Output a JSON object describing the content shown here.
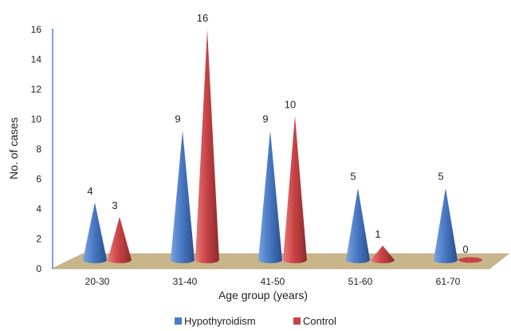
{
  "chart_data": {
    "type": "bar",
    "style": "3d-cone",
    "categories": [
      "20-30",
      "31-40",
      "41-50",
      "51-60",
      "61-70"
    ],
    "series": [
      {
        "name": "Hypothyroidism",
        "values": [
          4,
          9,
          9,
          5,
          5
        ],
        "color": "#4a7ac4"
      },
      {
        "name": "Control",
        "values": [
          3,
          16,
          10,
          1,
          0
        ],
        "color": "#c94446"
      }
    ],
    "xlabel": "Age group (years)",
    "ylabel": "No. of cases",
    "ylim": [
      0,
      16
    ],
    "yticks": [
      "0",
      "2",
      "4",
      "6",
      "8",
      "10",
      "12",
      "14",
      "16"
    ],
    "grid": false,
    "floor_color": "#c8b68a",
    "legend_position": "bottom"
  }
}
